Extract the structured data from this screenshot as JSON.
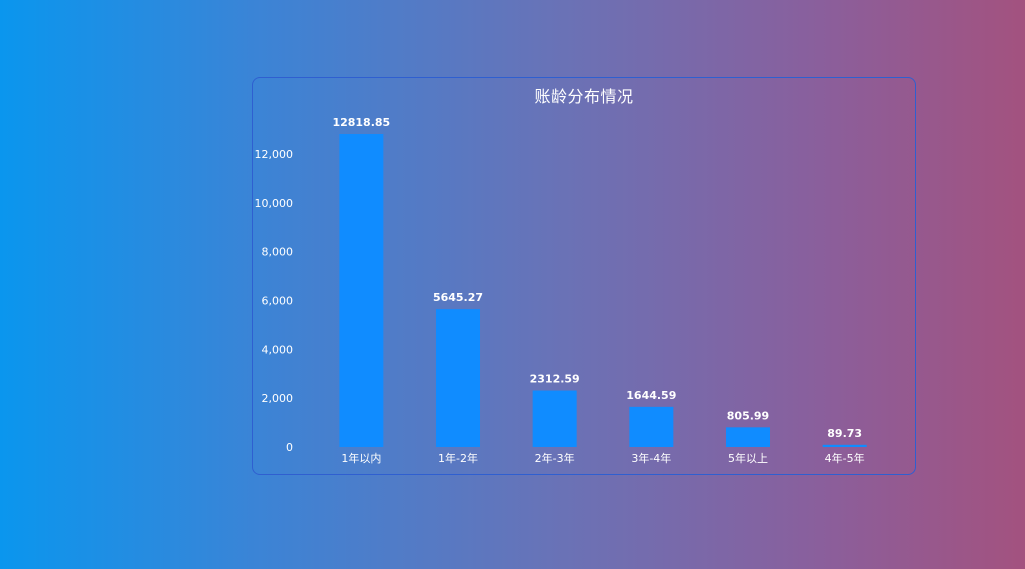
{
  "chart_data": {
    "type": "bar",
    "title": "账龄分布情况",
    "categories": [
      "1年以内",
      "1年-2年",
      "2年-3年",
      "3年-4年",
      "5年以上",
      "4年-5年"
    ],
    "values": [
      12818.85,
      5645.27,
      2312.59,
      1644.59,
      805.99,
      89.73
    ],
    "data_labels": [
      "12818.85",
      "5645.27",
      "2312.59",
      "1644.59",
      "805.99",
      "89.73"
    ],
    "y_ticks": [
      0,
      2000,
      4000,
      6000,
      8000,
      10000,
      12000
    ],
    "y_tick_labels": [
      "0",
      "2,000",
      "4,000",
      "6,000",
      "8,000",
      "10,000",
      "12,000"
    ],
    "ylim": [
      0,
      12818.85
    ],
    "grid": false,
    "bar_color": "#108cff",
    "text_color": "#ffffff"
  }
}
